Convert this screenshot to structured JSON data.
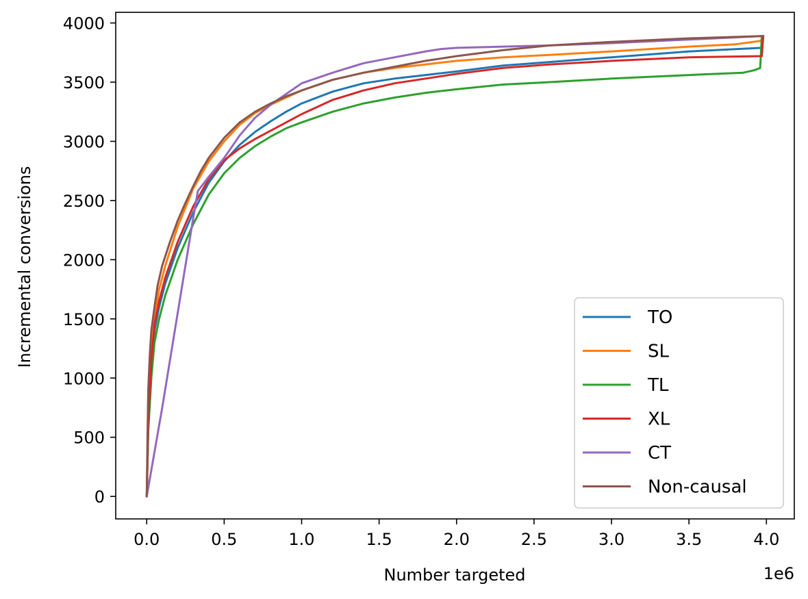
{
  "chart_data": {
    "type": "line",
    "title": "",
    "xlabel": "Number targeted",
    "ylabel": "Incremental conversions",
    "x_offset_label": "1e6",
    "xlim": [
      -0.2,
      4.18
    ],
    "ylim": [
      -190,
      4090
    ],
    "xticks": [
      0.0,
      0.5,
      1.0,
      1.5,
      2.0,
      2.5,
      3.0,
      3.5,
      4.0
    ],
    "xtick_labels": [
      "0.0",
      "0.5",
      "1.0",
      "1.5",
      "2.0",
      "2.5",
      "3.0",
      "3.5",
      "4.0"
    ],
    "yticks": [
      0,
      500,
      1000,
      1500,
      2000,
      2500,
      3000,
      3500,
      4000
    ],
    "ytick_labels": [
      "0",
      "500",
      "1000",
      "1500",
      "2000",
      "2500",
      "3000",
      "3500",
      "4000"
    ],
    "legend_position": "lower-right",
    "series": [
      {
        "name": "TO",
        "color": "#1f77b4",
        "x": [
          0,
          0.01,
          0.03,
          0.05,
          0.08,
          0.12,
          0.2,
          0.3,
          0.4,
          0.5,
          0.6,
          0.7,
          0.8,
          0.9,
          1.0,
          1.2,
          1.4,
          1.6,
          1.8,
          2.0,
          2.3,
          2.6,
          3.0,
          3.5,
          3.97,
          3.98
        ],
        "y": [
          0,
          600,
          1100,
          1400,
          1600,
          1800,
          2100,
          2400,
          2650,
          2830,
          2970,
          3080,
          3170,
          3250,
          3320,
          3420,
          3490,
          3530,
          3560,
          3590,
          3640,
          3670,
          3710,
          3760,
          3790,
          3890
        ]
      },
      {
        "name": "SL",
        "color": "#ff7f0e",
        "x": [
          0,
          0.01,
          0.03,
          0.05,
          0.08,
          0.12,
          0.2,
          0.3,
          0.4,
          0.5,
          0.6,
          0.7,
          0.8,
          0.9,
          1.0,
          1.2,
          1.4,
          1.6,
          1.8,
          2.0,
          2.3,
          2.6,
          3.0,
          3.5,
          3.8,
          3.97,
          3.98
        ],
        "y": [
          0,
          650,
          1200,
          1500,
          1750,
          1950,
          2280,
          2600,
          2830,
          3000,
          3140,
          3240,
          3310,
          3370,
          3430,
          3520,
          3580,
          3620,
          3650,
          3680,
          3710,
          3730,
          3760,
          3800,
          3820,
          3850,
          3890
        ]
      },
      {
        "name": "TL",
        "color": "#2ca02c",
        "x": [
          0,
          0.01,
          0.03,
          0.05,
          0.08,
          0.12,
          0.2,
          0.3,
          0.4,
          0.5,
          0.6,
          0.7,
          0.8,
          0.9,
          1.0,
          1.2,
          1.4,
          1.6,
          1.8,
          2.0,
          2.3,
          2.6,
          3.0,
          3.5,
          3.85,
          3.92,
          3.96,
          3.97
        ],
        "y": [
          0,
          550,
          1000,
          1300,
          1500,
          1700,
          2000,
          2300,
          2550,
          2730,
          2860,
          2960,
          3040,
          3110,
          3160,
          3250,
          3320,
          3370,
          3410,
          3440,
          3480,
          3500,
          3530,
          3560,
          3580,
          3600,
          3620,
          3890
        ]
      },
      {
        "name": "XL",
        "color": "#d62728",
        "x": [
          0,
          0.01,
          0.03,
          0.05,
          0.08,
          0.12,
          0.2,
          0.3,
          0.4,
          0.5,
          0.6,
          0.7,
          0.8,
          0.9,
          1.0,
          1.2,
          1.4,
          1.6,
          1.8,
          2.0,
          2.3,
          2.6,
          3.0,
          3.5,
          3.97,
          3.98
        ],
        "y": [
          0,
          620,
          1150,
          1450,
          1650,
          1850,
          2150,
          2450,
          2680,
          2840,
          2940,
          3020,
          3090,
          3160,
          3230,
          3350,
          3430,
          3490,
          3530,
          3570,
          3620,
          3650,
          3680,
          3710,
          3720,
          3890
        ]
      },
      {
        "name": "CT",
        "color": "#9467bd",
        "x": [
          0,
          0.1,
          0.2,
          0.3,
          0.33,
          0.4,
          0.5,
          0.6,
          0.7,
          0.8,
          0.9,
          1.0,
          1.2,
          1.4,
          1.6,
          1.8,
          1.9,
          2.0,
          2.3,
          2.6,
          3.0,
          3.5,
          3.98
        ],
        "y": [
          0,
          750,
          1550,
          2350,
          2580,
          2700,
          2860,
          3050,
          3200,
          3310,
          3400,
          3490,
          3580,
          3660,
          3710,
          3760,
          3780,
          3790,
          3800,
          3810,
          3830,
          3860,
          3890
        ]
      },
      {
        "name": "Non-causal",
        "color": "#8c564b",
        "x": [
          0,
          0.005,
          0.01,
          0.02,
          0.03,
          0.05,
          0.07,
          0.1,
          0.15,
          0.2,
          0.25,
          0.3,
          0.35,
          0.4,
          0.5,
          0.6,
          0.7,
          0.8,
          0.9,
          1.0,
          1.2,
          1.4,
          1.6,
          1.8,
          2.0,
          2.3,
          2.6,
          3.0,
          3.5,
          3.98
        ],
        "y": [
          0,
          500,
          900,
          1200,
          1400,
          1600,
          1780,
          1950,
          2150,
          2330,
          2480,
          2620,
          2750,
          2860,
          3030,
          3160,
          3250,
          3320,
          3380,
          3430,
          3520,
          3580,
          3630,
          3680,
          3720,
          3770,
          3810,
          3840,
          3870,
          3890
        ]
      }
    ]
  }
}
